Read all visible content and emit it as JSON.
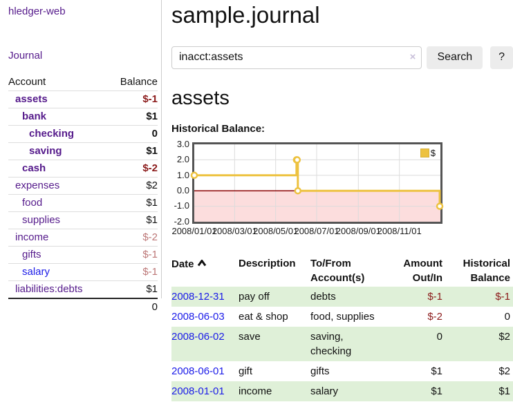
{
  "colors": {
    "link_purple": "#551A8B",
    "link_blue": "#1a1ae8",
    "negative_strong": "#8b1a1a",
    "negative_muted": "#bc7676",
    "row_stripe_green": "#dff0d8",
    "chart_gold": "#edc240",
    "chart_negative_fill": "#fcdddd",
    "chart_zero_line": "#8b0000",
    "grid_line": "#dcdcdc"
  },
  "sidebar": {
    "brand": "hledger-web",
    "journal_link": "Journal",
    "accounts": {
      "headers": [
        "Account",
        "Balance"
      ],
      "rows": [
        {
          "name": "assets",
          "balance": "$-1",
          "indent": 1,
          "bold": true,
          "tone": "neg",
          "link": "purple"
        },
        {
          "name": "bank",
          "balance": "$1",
          "indent": 2,
          "bold": true,
          "tone": "",
          "link": "purple"
        },
        {
          "name": "checking",
          "balance": "0",
          "indent": 3,
          "bold": true,
          "tone": "",
          "link": "purple"
        },
        {
          "name": "saving",
          "balance": "$1",
          "indent": 3,
          "bold": true,
          "tone": "",
          "link": "purple"
        },
        {
          "name": "cash",
          "balance": "$-2",
          "indent": 2,
          "bold": true,
          "tone": "neg",
          "link": "purple"
        },
        {
          "name": "expenses",
          "balance": "$2",
          "indent": 1,
          "bold": false,
          "tone": "",
          "link": "purple"
        },
        {
          "name": "food",
          "balance": "$1",
          "indent": 2,
          "bold": false,
          "tone": "",
          "link": "purple"
        },
        {
          "name": "supplies",
          "balance": "$1",
          "indent": 2,
          "bold": false,
          "tone": "",
          "link": "purple"
        },
        {
          "name": "income",
          "balance": "$-2",
          "indent": 1,
          "bold": false,
          "tone": "negmut",
          "link": "purple"
        },
        {
          "name": "gifts",
          "balance": "$-1",
          "indent": 2,
          "bold": false,
          "tone": "negmut",
          "link": "purple"
        },
        {
          "name": "salary",
          "balance": "$-1",
          "indent": 2,
          "bold": false,
          "tone": "negmut",
          "link": "blue"
        },
        {
          "name": "liabilities:debts",
          "balance": "$1",
          "indent": 1,
          "bold": false,
          "tone": "",
          "link": "purple"
        }
      ],
      "total": "0"
    }
  },
  "main": {
    "title": "sample.journal",
    "search": {
      "value": "inacct:assets",
      "clear_icon": "×",
      "button_label": "Search",
      "help_label": "?"
    },
    "account_heading": "assets",
    "section_label": "Historical Balance:"
  },
  "chart_data": {
    "type": "line",
    "title": "Historical Balance",
    "x_type": "date",
    "xlim": [
      "2008-01-01",
      "2009-01-01"
    ],
    "ylim": [
      -2,
      3
    ],
    "yticks": [
      "3.0",
      "2.0",
      "1.0",
      "0.0",
      "-1.0",
      "-2.0"
    ],
    "ytick_values": [
      3,
      2,
      1,
      0,
      -1,
      -2
    ],
    "xticks": [
      {
        "label": "2008/01/01",
        "date": "2008-01-01"
      },
      {
        "label": "2008/03/01",
        "date": "2008-03-01"
      },
      {
        "label": "2008/05/01",
        "date": "2008-05-01"
      },
      {
        "label": "2008/07/01",
        "date": "2008-07-01"
      },
      {
        "label": "2008/09/01",
        "date": "2008-09-01"
      },
      {
        "label": "2008/11/01",
        "date": "2008-11-01"
      }
    ],
    "grid": true,
    "legend_position": "top-right",
    "series": [
      {
        "name": "$",
        "step": true,
        "points": [
          {
            "date": "2008-01-01",
            "value": 1
          },
          {
            "date": "2008-06-01",
            "value": 2
          },
          {
            "date": "2008-06-02",
            "value": 2
          },
          {
            "date": "2008-06-03",
            "value": 0
          },
          {
            "date": "2008-12-31",
            "value": -1
          }
        ]
      }
    ]
  },
  "transactions": {
    "headers": {
      "date": "Date",
      "description": "Description",
      "accounts": "To/From Account(s)",
      "amount": "Amount Out/In",
      "balance": "Historical Balance"
    },
    "rows": [
      {
        "date": "2008-12-31",
        "description": "pay off",
        "accounts": "debts",
        "amount": "$-1",
        "balance": "$-1"
      },
      {
        "date": "2008-06-03",
        "description": "eat & shop",
        "accounts": "food, supplies",
        "amount": "$-2",
        "balance": "0"
      },
      {
        "date": "2008-06-02",
        "description": "save",
        "accounts": "saving, checking",
        "amount": "0",
        "balance": "$2"
      },
      {
        "date": "2008-06-01",
        "description": "gift",
        "accounts": "gifts",
        "amount": "$1",
        "balance": "$2"
      },
      {
        "date": "2008-01-01",
        "description": "income",
        "accounts": "salary",
        "amount": "$1",
        "balance": "$1"
      }
    ]
  }
}
